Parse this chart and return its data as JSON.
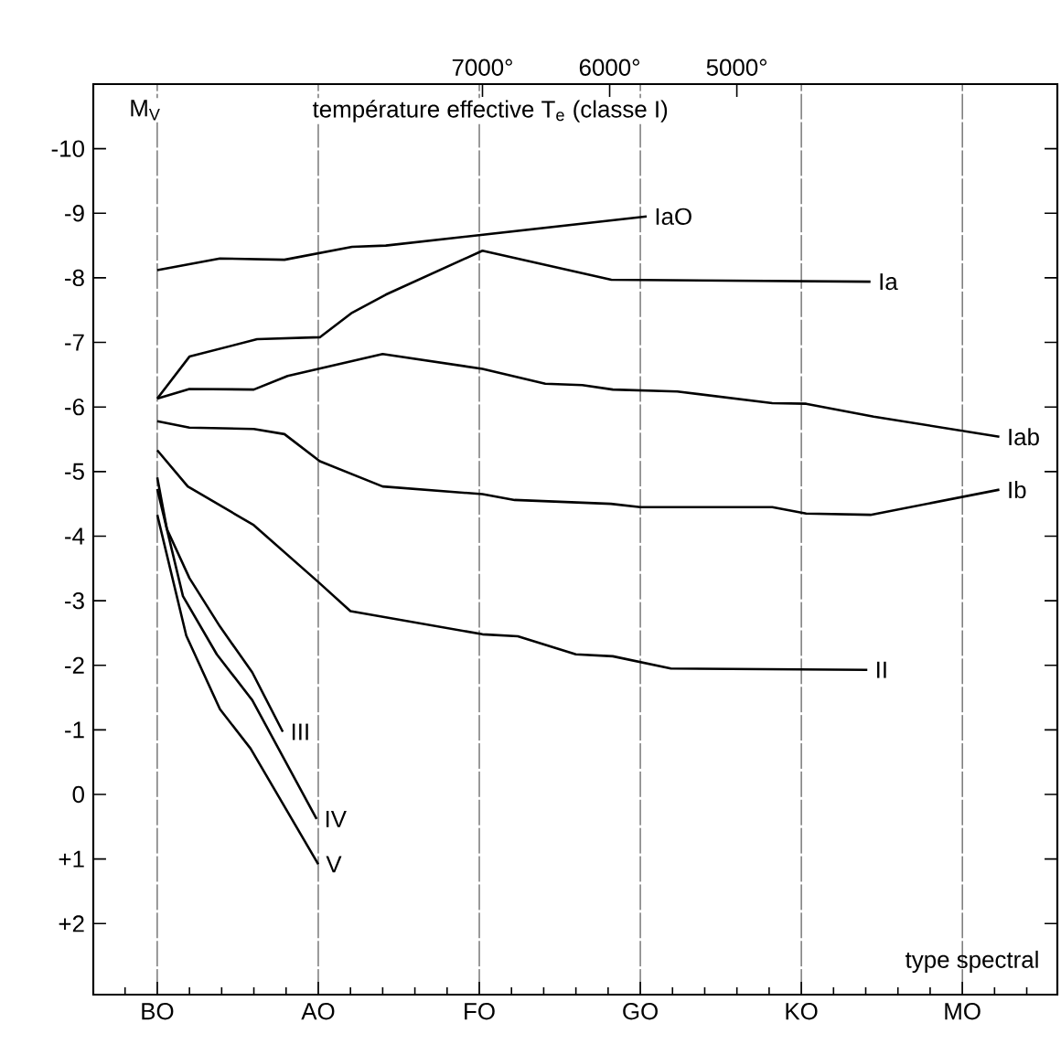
{
  "chart_data": {
    "type": "line",
    "x2label": "température effective T$_{e}$ (classe I)",
    "xlabel": "type spectral",
    "ylabel": "M$_{V}$",
    "xlim": [
      10060,
      2480
    ],
    "ylim": [
      3.1,
      -11.0
    ],
    "xticks": [
      {
        "value": 7000,
        "label": "7000°"
      },
      {
        "value": 6000,
        "label": "6000°"
      },
      {
        "value": 5000,
        "label": "5000°"
      }
    ],
    "yticks": [
      -10,
      -9,
      -8,
      -7,
      -6,
      -5,
      -4,
      -3,
      -2,
      -1,
      0,
      {
        "value": 1,
        "label": "+1"
      },
      {
        "value": 2,
        "label": "+2"
      }
    ],
    "ref_lines": [
      {
        "axis": "x",
        "value": 9557,
        "label": "BO",
        "line_style": "dashed"
      },
      {
        "axis": "x",
        "value": 8291,
        "label": "AO",
        "line_style": "dashed"
      },
      {
        "axis": "x",
        "value": 7025,
        "label": "FO",
        "line_style": "dashed"
      },
      {
        "axis": "x",
        "value": 5759,
        "label": "GO",
        "line_style": "dashed"
      },
      {
        "axis": "x",
        "value": 4493,
        "label": "KO",
        "line_style": "dashed"
      },
      {
        "axis": "x",
        "value": 3227,
        "label": "MO",
        "line_style": "dashed"
      }
    ],
    "marker": "none",
    "line_style": "solid",
    "series": [
      {
        "name": "IaO",
        "color": "#000000",
        "x": [
          9557,
          9064,
          8557,
          8025,
          7760,
          5709
        ],
        "values": [
          -8.12,
          -8.3,
          -8.28,
          -8.48,
          -8.5,
          -8.95
        ]
      },
      {
        "name": "Ia",
        "color": "#000000",
        "x": [
          9557,
          9304,
          8772,
          8279,
          8025,
          7760,
          7000,
          5987,
          3949
        ],
        "values": [
          -6.13,
          -6.78,
          -7.05,
          -7.08,
          -7.46,
          -7.74,
          -8.42,
          -7.97,
          -7.94
        ]
      },
      {
        "name": "Iab",
        "color": "#000000",
        "x": [
          9557,
          9304,
          8798,
          8532,
          7785,
          7000,
          6506,
          6215,
          5975,
          5468,
          4721,
          4455,
          3924,
          2936
        ],
        "values": [
          -6.13,
          -6.28,
          -6.27,
          -6.48,
          -6.82,
          -6.59,
          -6.36,
          -6.34,
          -6.27,
          -6.24,
          -6.06,
          -6.05,
          -5.85,
          -5.54
        ]
      },
      {
        "name": "Ib",
        "color": "#000000",
        "x": [
          9557,
          9304,
          8798,
          8557,
          8279,
          7785,
          7000,
          6747,
          5990,
          5759,
          4721,
          4455,
          3949,
          2936
        ],
        "values": [
          -5.78,
          -5.68,
          -5.66,
          -5.58,
          -5.16,
          -4.77,
          -4.65,
          -4.56,
          -4.5,
          -4.45,
          -4.45,
          -4.35,
          -4.33,
          -4.72
        ]
      },
      {
        "name": "II",
        "color": "#000000",
        "x": [
          9557,
          9317,
          8798,
          8291,
          8038,
          7000,
          6722,
          6266,
          5975,
          5519,
          3974
        ],
        "values": [
          -5.33,
          -4.77,
          -4.17,
          -3.29,
          -2.84,
          -2.48,
          -2.45,
          -2.17,
          -2.14,
          -1.95,
          -1.93
        ]
      },
      {
        "name": "III",
        "color": "#000000",
        "x": [
          9557,
          9481,
          9304,
          9064,
          8810,
          8570
        ],
        "values": [
          -4.91,
          -4.11,
          -3.35,
          -2.6,
          -1.89,
          -0.97
        ]
      },
      {
        "name": "IV",
        "color": "#000000",
        "x": [
          9557,
          9355,
          9089,
          8810,
          8304
        ],
        "values": [
          -4.73,
          -3.07,
          -2.17,
          -1.46,
          0.38
        ]
      },
      {
        "name": "V",
        "color": "#000000",
        "x": [
          9557,
          9329,
          9064,
          8823,
          8291
        ],
        "values": [
          -4.33,
          -2.46,
          -1.32,
          -0.71,
          1.08
        ]
      }
    ]
  }
}
